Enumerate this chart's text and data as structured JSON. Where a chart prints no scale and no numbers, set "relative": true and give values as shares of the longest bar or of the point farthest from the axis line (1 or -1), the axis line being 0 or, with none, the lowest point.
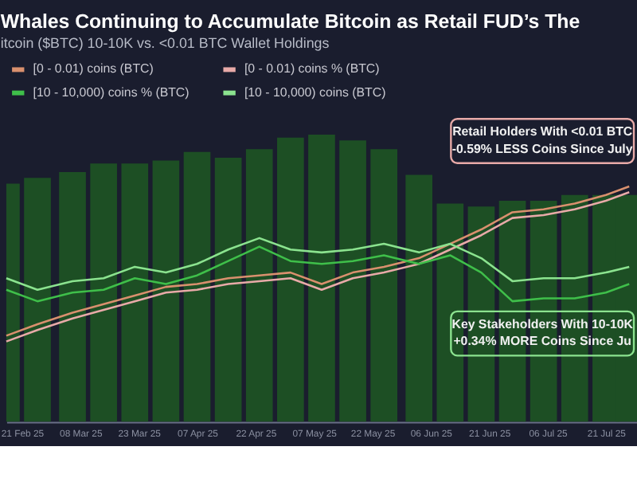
{
  "chart_data": {
    "type": "line",
    "relative": true,
    "title": "Whales Continuing to Accumulate Bitcoin as Retail FUD’s The",
    "subtitle": "itcoin ($BTC) 10-10K vs. <0.01 BTC Wallet Holdings",
    "x": [
      "2025-02-17",
      "2025-02-25",
      "2025-03-06",
      "2025-03-14",
      "2025-03-22",
      "2025-03-30",
      "2025-04-07",
      "2025-04-15",
      "2025-04-23",
      "2025-05-01",
      "2025-05-09",
      "2025-05-17",
      "2025-05-25",
      "2025-06-03",
      "2025-06-11",
      "2025-06-19",
      "2025-06-27",
      "2025-07-05",
      "2025-07-13",
      "2025-07-21",
      "2025-07-27"
    ],
    "xlim": [
      "2025-02-17",
      "2025-07-29"
    ],
    "xticks": [
      {
        "value": "2025-02-21",
        "label": "21 Feb 25"
      },
      {
        "value": "2025-03-08",
        "label": "08 Mar 25"
      },
      {
        "value": "2025-03-23",
        "label": "23 Mar 25"
      },
      {
        "value": "2025-04-07",
        "label": "07 Apr 25"
      },
      {
        "value": "2025-04-22",
        "label": "22 Apr 25"
      },
      {
        "value": "2025-05-07",
        "label": "07 May 25"
      },
      {
        "value": "2025-05-22",
        "label": "22 May 25"
      },
      {
        "value": "2025-06-06",
        "label": "06 Jun 25"
      },
      {
        "value": "2025-06-21",
        "label": "21 Jun 25"
      },
      {
        "value": "2025-07-06",
        "label": "06 Jul 25"
      },
      {
        "value": "2025-07-21",
        "label": "21 Jul 25"
      }
    ],
    "series": [
      {
        "type": "bar",
        "color": "#1d4f24",
        "values": [
          0.83,
          0.85,
          0.87,
          0.9,
          0.9,
          0.91,
          0.94,
          0.92,
          0.95,
          0.99,
          1.0,
          0.98,
          0.95,
          0.86,
          0.76,
          0.75,
          0.77,
          0.77,
          0.79,
          0.79,
          0.79
        ]
      },
      {
        "name": "[0 - 0.01) coins (BTC)",
        "color": "#d9906e",
        "values": [
          0.3,
          0.34,
          0.38,
          0.41,
          0.44,
          0.47,
          0.48,
          0.5,
          0.51,
          0.52,
          0.48,
          0.52,
          0.54,
          0.57,
          0.62,
          0.67,
          0.73,
          0.74,
          0.76,
          0.79,
          0.82
        ]
      },
      {
        "name": "[0 - 0.01) coins % (BTC)",
        "color": "#e8aaa8",
        "values": [
          0.28,
          0.32,
          0.36,
          0.39,
          0.42,
          0.45,
          0.46,
          0.48,
          0.49,
          0.5,
          0.46,
          0.5,
          0.52,
          0.55,
          0.6,
          0.65,
          0.71,
          0.72,
          0.74,
          0.77,
          0.8
        ]
      },
      {
        "name": "[10 - 10,000) coins % (BTC)",
        "color": "#3fbf4a",
        "values": [
          0.46,
          0.42,
          0.45,
          0.46,
          0.5,
          0.48,
          0.51,
          0.56,
          0.61,
          0.56,
          0.55,
          0.56,
          0.58,
          0.55,
          0.58,
          0.52,
          0.42,
          0.43,
          0.43,
          0.45,
          0.48
        ]
      },
      {
        "name": "[10 - 10,000) coins (BTC)",
        "color": "#8be38f",
        "values": [
          0.5,
          0.46,
          0.49,
          0.5,
          0.54,
          0.52,
          0.55,
          0.6,
          0.64,
          0.6,
          0.59,
          0.6,
          0.62,
          0.59,
          0.62,
          0.57,
          0.49,
          0.5,
          0.5,
          0.52,
          0.54
        ]
      }
    ],
    "annotations": [
      "Retail Holders With <0.01 BTC",
      "-0.59% LESS Coins Since July",
      "Key Stakeholders With 10-10K",
      "+0.34% MORE Coins Since Ju"
    ],
    "legend": "top left",
    "grid": false,
    "marker": "none",
    "line_style": "solid"
  }
}
